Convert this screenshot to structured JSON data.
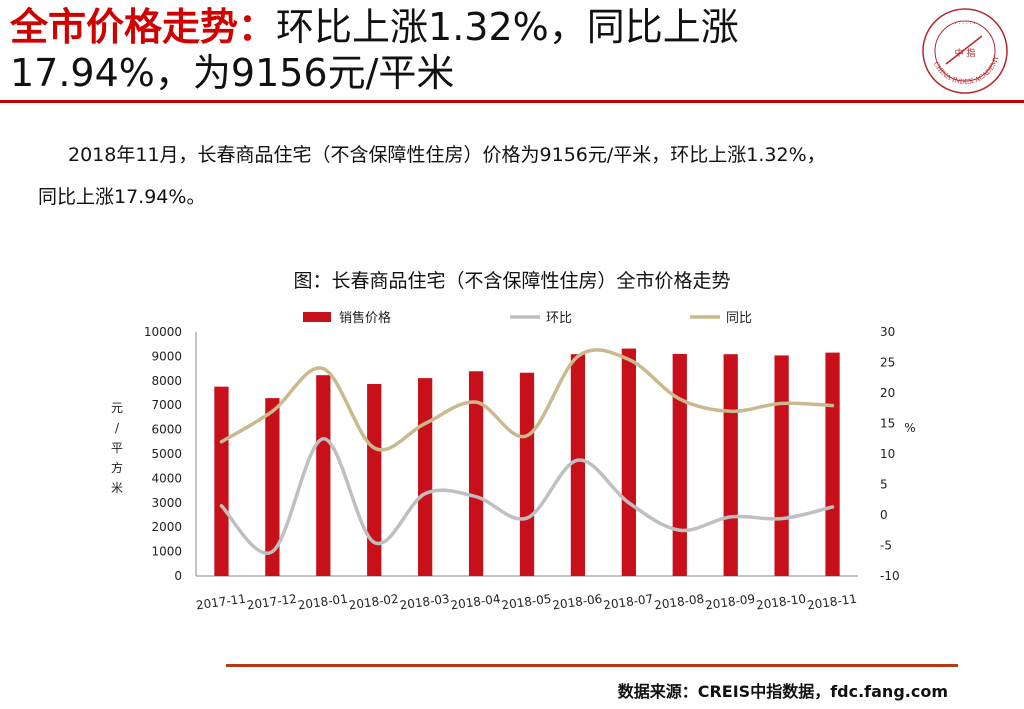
{
  "header": {
    "title_key": "全市价格走势：",
    "title_rest_line1": "环比上涨1.32%，同比上涨",
    "title_line2": "17.94%，为9156元/平米"
  },
  "logo": {
    "center_text": "中 指",
    "ring_text": "CHINA INDEX ACADEMY",
    "accent": "#b4282d"
  },
  "body_text": {
    "line1": "2018年11月，长春商品住宅（不含保障性住房）价格为9156元/平米，环比上涨1.32%，",
    "line2": "同比上涨17.94%。"
  },
  "chart_title": "图：长春商品住宅（不含保障性住房）全市价格走势",
  "source": "数据来源：CREIS中指数据，fdc.fang.com",
  "colors": {
    "accent_red": "#c00000",
    "bar": "#c8101a",
    "mom_line": "#bfbfbf",
    "yoy_line": "#c9b98c",
    "footer_rule": "#b33a14"
  },
  "chart_data": {
    "type": "bar",
    "title": "图：长春商品住宅（不含保障性住房）全市价格走势",
    "categories": [
      "2017-11",
      "2017-12",
      "2018-01",
      "2018-02",
      "2018-03",
      "2018-04",
      "2018-05",
      "2018-06",
      "2018-07",
      "2018-08",
      "2018-09",
      "2018-10",
      "2018-11"
    ],
    "series": [
      {
        "name": "销售价格",
        "type": "bar",
        "axis": "left",
        "color": "#c8101a",
        "values": [
          7760,
          7290,
          8230,
          7870,
          8110,
          8390,
          8330,
          9090,
          9320,
          9100,
          9090,
          9040,
          9156
        ]
      },
      {
        "name": "环比",
        "type": "line",
        "axis": "right",
        "color": "#bfbfbf",
        "values": [
          1.5,
          -6.0,
          12.5,
          -4.5,
          3.5,
          3.0,
          -0.5,
          9.0,
          2.0,
          -2.5,
          -0.3,
          -0.6,
          1.32
        ]
      },
      {
        "name": "同比",
        "type": "line",
        "axis": "right",
        "color": "#c9b98c",
        "values": [
          12.0,
          17.0,
          24.0,
          11.0,
          15.0,
          18.5,
          13.0,
          26.0,
          25.5,
          19.0,
          17.0,
          18.3,
          17.94
        ]
      }
    ],
    "y_left": {
      "label": "元/平方米",
      "lim": [
        0,
        10000
      ],
      "ticks": [
        0,
        1000,
        2000,
        3000,
        4000,
        5000,
        6000,
        7000,
        8000,
        9000,
        10000
      ]
    },
    "y_right": {
      "label": "%",
      "lim": [
        -10,
        30
      ],
      "ticks": [
        -10,
        -5,
        0,
        5,
        10,
        15,
        20,
        25,
        30
      ]
    },
    "legend": {
      "position": "top"
    },
    "grid": false
  }
}
